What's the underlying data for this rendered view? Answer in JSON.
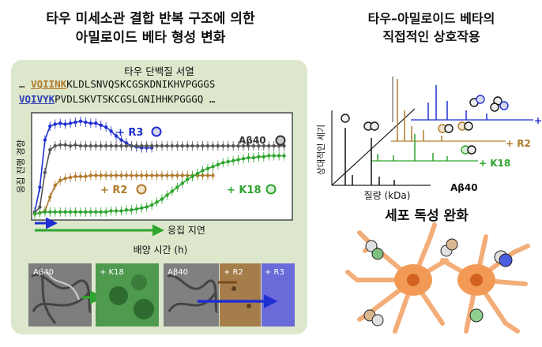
{
  "titles": {
    "left_line1": "타우 미세소관 결합 반복 구조에 의한",
    "left_line2": "아밀로이드 베타 형성 변화",
    "right_line1": "타우–아밀로이드 베타의",
    "right_line2": "직접적인 상호작용",
    "toxicity": "세포 독성 완화"
  },
  "sequence": {
    "title": "타우 단백질 서열",
    "line1_prefix": "…",
    "line1_highlight": "VQIINK",
    "line1_rest": "KLDLSNVQSKCGSKDNIKHVPGGGS",
    "line2_highlight": "VQIVYK",
    "line2_rest": "PVDLSKVTSKCGSLGNIHHKPGGGQ …"
  },
  "kinetics": {
    "y_label": "응집 진행 경향",
    "x_label": "배양 시간 (h)",
    "delay_label": "응집 지연",
    "labels": {
      "r3": "+ R3",
      "abeta": "Aβ40",
      "r2": "+ R2",
      "k18": "+ K18"
    },
    "colors": {
      "r3": "#1f2fd1",
      "abeta": "#555555",
      "r2": "#b07a2a",
      "k18": "#2ea52e"
    }
  },
  "chart_data": {
    "type": "line",
    "title": "",
    "xlabel": "배양 시간 (h)",
    "ylabel": "응집 진행 경향",
    "grid": false,
    "legend": "inline labels",
    "x": [
      0,
      4,
      8,
      12,
      16,
      20,
      24,
      28,
      32,
      36,
      40,
      44,
      48,
      52,
      56,
      60,
      64,
      68,
      72,
      76,
      80,
      84,
      88,
      92,
      96,
      100,
      104,
      108,
      112,
      116,
      120,
      124,
      128,
      132,
      136,
      140,
      144,
      148,
      152,
      156,
      160,
      164,
      168,
      172,
      176,
      180,
      184,
      188,
      192,
      196
    ],
    "xlim": [
      0,
      200
    ],
    "ylim": [
      0,
      1
    ],
    "series": [
      {
        "name": "+ R3",
        "values": [
          0.05,
          0.3,
          0.78,
          0.92,
          0.94,
          0.95,
          0.94,
          0.95,
          0.96,
          0.97,
          0.96,
          0.95,
          0.95,
          0.93,
          0.91,
          0.87,
          0.82,
          0.78,
          0.75,
          0.72,
          0.71,
          0.7,
          0.7,
          0.7,
          null,
          null,
          null,
          null,
          null,
          null,
          null,
          null,
          null,
          null,
          null,
          null,
          null,
          null,
          null,
          null,
          null,
          null,
          null,
          null,
          null,
          null,
          null,
          null,
          null,
          null
        ]
      },
      {
        "name": "Aβ40",
        "values": [
          0.04,
          0.1,
          0.45,
          0.68,
          0.72,
          0.73,
          0.73,
          0.72,
          0.73,
          0.72,
          0.72,
          0.72,
          0.72,
          0.72,
          0.72,
          0.72,
          0.72,
          0.72,
          0.72,
          0.72,
          0.72,
          0.72,
          0.72,
          0.72,
          0.72,
          0.72,
          0.72,
          0.72,
          0.72,
          0.72,
          0.72,
          0.72,
          0.72,
          0.72,
          0.72,
          0.72,
          0.72,
          0.72,
          0.72,
          0.72,
          0.72,
          0.72,
          0.72,
          0.72,
          0.72,
          0.72,
          0.72,
          0.72,
          0.72,
          0.72
        ]
      },
      {
        "name": "+ R2",
        "values": [
          0.03,
          0.04,
          0.06,
          0.2,
          0.32,
          0.37,
          0.39,
          0.4,
          0.41,
          0.41,
          0.41,
          0.42,
          0.42,
          0.42,
          0.42,
          0.42,
          0.42,
          0.42,
          0.42,
          0.42,
          0.42,
          0.42,
          0.42,
          0.42,
          0.42,
          0.42,
          0.42,
          0.42,
          0.42,
          0.42,
          0.42,
          0.42,
          0.42,
          0.42,
          0.42,
          0.42,
          null,
          null,
          null,
          null,
          null,
          null,
          null,
          null,
          null,
          null,
          null,
          null,
          null,
          null
        ]
      },
      {
        "name": "+ K18",
        "values": [
          0.03,
          0.04,
          0.05,
          0.05,
          0.05,
          0.05,
          0.05,
          0.05,
          0.05,
          0.05,
          0.05,
          0.05,
          0.05,
          0.05,
          0.05,
          0.06,
          0.06,
          0.06,
          0.07,
          0.07,
          0.08,
          0.09,
          0.1,
          0.12,
          0.15,
          0.18,
          0.22,
          0.26,
          0.3,
          0.34,
          0.38,
          0.41,
          0.44,
          0.47,
          0.49,
          0.51,
          0.53,
          0.55,
          0.56,
          0.57,
          0.58,
          0.59,
          0.6,
          0.6,
          0.61,
          0.61,
          0.62,
          0.62,
          0.62,
          0.62
        ]
      }
    ]
  },
  "tem": {
    "abeta1": "Aβ40",
    "k18": "+ K18",
    "abeta2": "Aβ40",
    "r2": "+ R2",
    "r3": "+ R3"
  },
  "spectra": {
    "y_label": "상대적인 세기",
    "x_label": "질량 (kDa)",
    "abeta": "Aβ40",
    "r2": "+ R2",
    "k18": "+ K18",
    "r3": "+"
  }
}
